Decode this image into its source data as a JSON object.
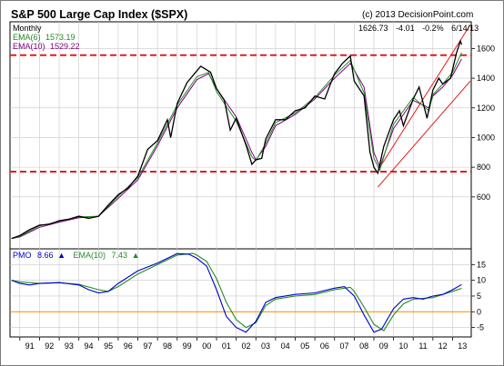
{
  "chart_data": {
    "type": "line",
    "title": "S&P 500 Large Cap Index ($SPX)",
    "copyright": "(c) 2013 DecisionPoint.com",
    "period": "Monthly",
    "last_quote": {
      "price": "1626.73",
      "change": "-4.01",
      "change_pct": "-0.2%",
      "date": "6/14/13"
    },
    "x_ticks": [
      "91",
      "92",
      "93",
      "94",
      "95",
      "96",
      "97",
      "98",
      "99",
      "00",
      "01",
      "02",
      "03",
      "04",
      "05",
      "06",
      "07",
      "08",
      "09",
      "10",
      "11",
      "12",
      "13"
    ],
    "price_panel": {
      "y_ticks": [
        600,
        800,
        1000,
        1200,
        1400,
        1600
      ],
      "ylim": [
        250,
        1780
      ],
      "legend": [
        {
          "name": "EMA(6)",
          "value": "1573.19",
          "color": "#228b22"
        },
        {
          "name": "EMA(10)",
          "value": "1529.22",
          "color": "#800080"
        }
      ],
      "price": {
        "color": "#000000",
        "x": [
          1990.58,
          1991,
          1991.5,
          1992,
          1992.5,
          1993,
          1993.5,
          1994,
          1994.5,
          1995,
          1995.5,
          1996,
          1996.5,
          1997,
          1997.5,
          1998,
          1998.5,
          1998.67,
          1999,
          1999.5,
          2000,
          2000.2,
          2000.7,
          2001,
          2001.4,
          2001.7,
          2002,
          2002.5,
          2002.8,
          2003,
          2003.3,
          2003.5,
          2004,
          2004.5,
          2005,
          2005.5,
          2006,
          2006.5,
          2007,
          2007.4,
          2007.8,
          2008,
          2008.5,
          2008.8,
          2009,
          2009.2,
          2009.5,
          2010,
          2010.3,
          2010.5,
          2011,
          2011.3,
          2011.7,
          2012,
          2012.3,
          2012.5,
          2012.9,
          2013,
          2013.2,
          2013.4,
          2013.46
        ],
        "y": [
          320,
          340,
          380,
          410,
          415,
          440,
          450,
          470,
          455,
          470,
          545,
          615,
          660,
          740,
          920,
          980,
          1120,
          1000,
          1230,
          1370,
          1450,
          1480,
          1440,
          1330,
          1250,
          1050,
          1130,
          950,
          820,
          850,
          860,
          990,
          1120,
          1120,
          1180,
          1200,
          1280,
          1260,
          1430,
          1500,
          1550,
          1380,
          1280,
          900,
          800,
          760,
          940,
          1120,
          1180,
          1080,
          1260,
          1340,
          1130,
          1320,
          1400,
          1360,
          1400,
          1460,
          1570,
          1650,
          1626
        ]
      },
      "ema6": {
        "color": "#228b22",
        "x": [
          1990.58,
          1991,
          1992,
          1993,
          1994,
          1995,
          1996,
          1997,
          1998,
          1999,
          2000,
          2000.6,
          2001,
          2002,
          2002.8,
          2003,
          2003.5,
          2004,
          2005,
          2006,
          2007,
          2007.8,
          2008.5,
          2009,
          2009.3,
          2010,
          2011,
          2011.8,
          2012,
          2012.5,
          2013,
          2013.46
        ],
        "y": [
          320,
          335,
          405,
          435,
          465,
          470,
          605,
          730,
          965,
          1220,
          1410,
          1440,
          1310,
          1110,
          870,
          845,
          960,
          1100,
          1165,
          1270,
          1420,
          1520,
          1300,
          860,
          780,
          1090,
          1270,
          1180,
          1290,
          1360,
          1440,
          1573.19
        ]
      },
      "ema10": {
        "color": "#800080",
        "x": [
          1990.58,
          1991,
          1992,
          1993,
          1994,
          1995,
          1996,
          1997,
          1998,
          1999,
          2000,
          2000.6,
          2001,
          2002,
          2002.8,
          2003,
          2003.5,
          2004,
          2005,
          2006,
          2007,
          2007.8,
          2008.5,
          2009,
          2009.3,
          2010,
          2011,
          2011.8,
          2012,
          2012.5,
          2013,
          2013.46
        ],
        "y": [
          320,
          330,
          395,
          430,
          460,
          470,
          590,
          715,
          945,
          1200,
          1390,
          1430,
          1330,
          1140,
          900,
          850,
          940,
          1080,
          1155,
          1260,
          1400,
          1500,
          1340,
          900,
          800,
          1060,
          1250,
          1200,
          1280,
          1340,
          1420,
          1529.22
        ]
      },
      "annotations": {
        "resistance": {
          "y": 1555,
          "color": "#e31a1a",
          "style": "dashed"
        },
        "support": {
          "y": 770,
          "color": "#e31a1a",
          "style": "dashed"
        },
        "channel_lower": {
          "from": [
            2009.2,
            666
          ],
          "to": [
            2013.9,
            1380
          ],
          "color": "#e31a1a"
        },
        "channel_upper": {
          "from": [
            2009.4,
            820
          ],
          "to": [
            2013.9,
            1760
          ],
          "color": "#e31a1a"
        }
      }
    },
    "pmo_panel": {
      "y_ticks": [
        -5,
        0,
        5,
        10,
        15
      ],
      "ylim": [
        -8,
        20
      ],
      "zero_line": {
        "y": 0,
        "color": "#ff8c00"
      },
      "legend": [
        {
          "name": "PMO",
          "value": "8.66",
          "color": "#0000cd"
        },
        {
          "name": "EMA(10)",
          "value": "7.43",
          "color": "#228b22"
        }
      ],
      "pmo": {
        "color": "#0000cd",
        "x": [
          1990.58,
          1991,
          1991.5,
          1992,
          1993,
          1994,
          1994.5,
          1995,
          1995.5,
          1996,
          1997,
          1998,
          1999,
          1999.6,
          2000,
          2000.5,
          2001,
          2001.5,
          2002,
          2002.5,
          2003,
          2003.5,
          2004,
          2005,
          2006,
          2007,
          2007.5,
          2008,
          2008.5,
          2009,
          2009.4,
          2010,
          2010.5,
          2011,
          2011.5,
          2012,
          2012.5,
          2013,
          2013.46
        ],
        "y": [
          10,
          9,
          8.5,
          9,
          9.3,
          8.5,
          7,
          6,
          6.5,
          9,
          13,
          15.5,
          18.5,
          18.3,
          17,
          14.5,
          7,
          -1.5,
          -5,
          -6.5,
          -3,
          3,
          4.5,
          5.5,
          6,
          7.5,
          8,
          5,
          -1,
          -6.5,
          -5.5,
          1,
          4,
          4.5,
          4,
          5,
          5.5,
          7,
          8.66
        ]
      },
      "signal": {
        "color": "#228b22",
        "x": [
          1990.58,
          1991,
          1992,
          1993,
          1994,
          1995,
          1995.5,
          1996,
          1997,
          1998,
          1999,
          1999.8,
          2000,
          2000.5,
          2001,
          2001.5,
          2002,
          2002.5,
          2003,
          2003.5,
          2004,
          2005,
          2006,
          2007,
          2007.8,
          2008,
          2008.5,
          2009,
          2009.5,
          2010,
          2010.5,
          2011,
          2012,
          2012.5,
          2013,
          2013.46
        ],
        "y": [
          10,
          9.5,
          9,
          9.2,
          8.7,
          7,
          6.5,
          8,
          12,
          15,
          18,
          18.6,
          18,
          16,
          10.5,
          3,
          -2.5,
          -5,
          -3.5,
          2,
          4,
          5,
          5.5,
          7,
          7.8,
          6.5,
          1.5,
          -4,
          -6,
          -1,
          2.5,
          4,
          4.5,
          5.5,
          6.5,
          7.43
        ]
      }
    }
  }
}
